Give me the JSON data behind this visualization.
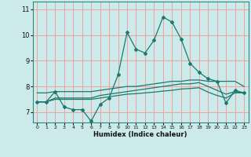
{
  "title": "",
  "xlabel": "Humidex (Indice chaleur)",
  "ylabel": "",
  "xlim": [
    -0.5,
    23.5
  ],
  "ylim": [
    6.6,
    11.3
  ],
  "yticks": [
    7,
    8,
    9,
    10,
    11
  ],
  "xticks": [
    0,
    1,
    2,
    3,
    4,
    5,
    6,
    7,
    8,
    9,
    10,
    11,
    12,
    13,
    14,
    15,
    16,
    17,
    18,
    19,
    20,
    21,
    22,
    23
  ],
  "bg_color": "#cceaea",
  "grid_color": "#f0a0a0",
  "line_color": "#1a7a6e",
  "series1_x": [
    0,
    1,
    2,
    3,
    4,
    5,
    6,
    7,
    8,
    9,
    10,
    11,
    12,
    13,
    14,
    15,
    16,
    17,
    18,
    19,
    20,
    21,
    22,
    23
  ],
  "series1_y": [
    7.4,
    7.4,
    7.8,
    7.2,
    7.1,
    7.1,
    6.65,
    7.3,
    7.55,
    8.45,
    10.1,
    9.45,
    9.3,
    9.8,
    10.7,
    10.5,
    9.85,
    8.9,
    8.55,
    8.3,
    8.2,
    7.35,
    7.85,
    7.75
  ],
  "series2_x": [
    0,
    1,
    2,
    3,
    4,
    5,
    6,
    7,
    8,
    9,
    10,
    11,
    12,
    13,
    14,
    15,
    16,
    17,
    18,
    19,
    20,
    21,
    22,
    23
  ],
  "series2_y": [
    7.75,
    7.75,
    7.8,
    7.8,
    7.8,
    7.8,
    7.8,
    7.85,
    7.9,
    7.95,
    8.0,
    8.0,
    8.05,
    8.1,
    8.15,
    8.2,
    8.2,
    8.25,
    8.25,
    8.2,
    8.2,
    8.2,
    8.2,
    8.0
  ],
  "series3_x": [
    0,
    1,
    2,
    3,
    4,
    5,
    6,
    7,
    8,
    9,
    10,
    11,
    12,
    13,
    14,
    15,
    16,
    17,
    18,
    19,
    20,
    21,
    22,
    23
  ],
  "series3_y": [
    7.4,
    7.4,
    7.55,
    7.55,
    7.55,
    7.55,
    7.55,
    7.65,
    7.7,
    7.75,
    7.8,
    7.85,
    7.9,
    7.95,
    8.0,
    8.05,
    8.1,
    8.1,
    8.15,
    8.0,
    7.85,
    7.7,
    7.8,
    7.75
  ],
  "series4_x": [
    0,
    1,
    2,
    3,
    4,
    5,
    6,
    7,
    8,
    9,
    10,
    11,
    12,
    13,
    14,
    15,
    16,
    17,
    18,
    19,
    20,
    21,
    22,
    23
  ],
  "series4_y": [
    7.4,
    7.4,
    7.5,
    7.5,
    7.5,
    7.5,
    7.5,
    7.55,
    7.6,
    7.65,
    7.7,
    7.72,
    7.75,
    7.78,
    7.82,
    7.85,
    7.9,
    7.92,
    7.95,
    7.78,
    7.65,
    7.55,
    7.75,
    7.75
  ]
}
